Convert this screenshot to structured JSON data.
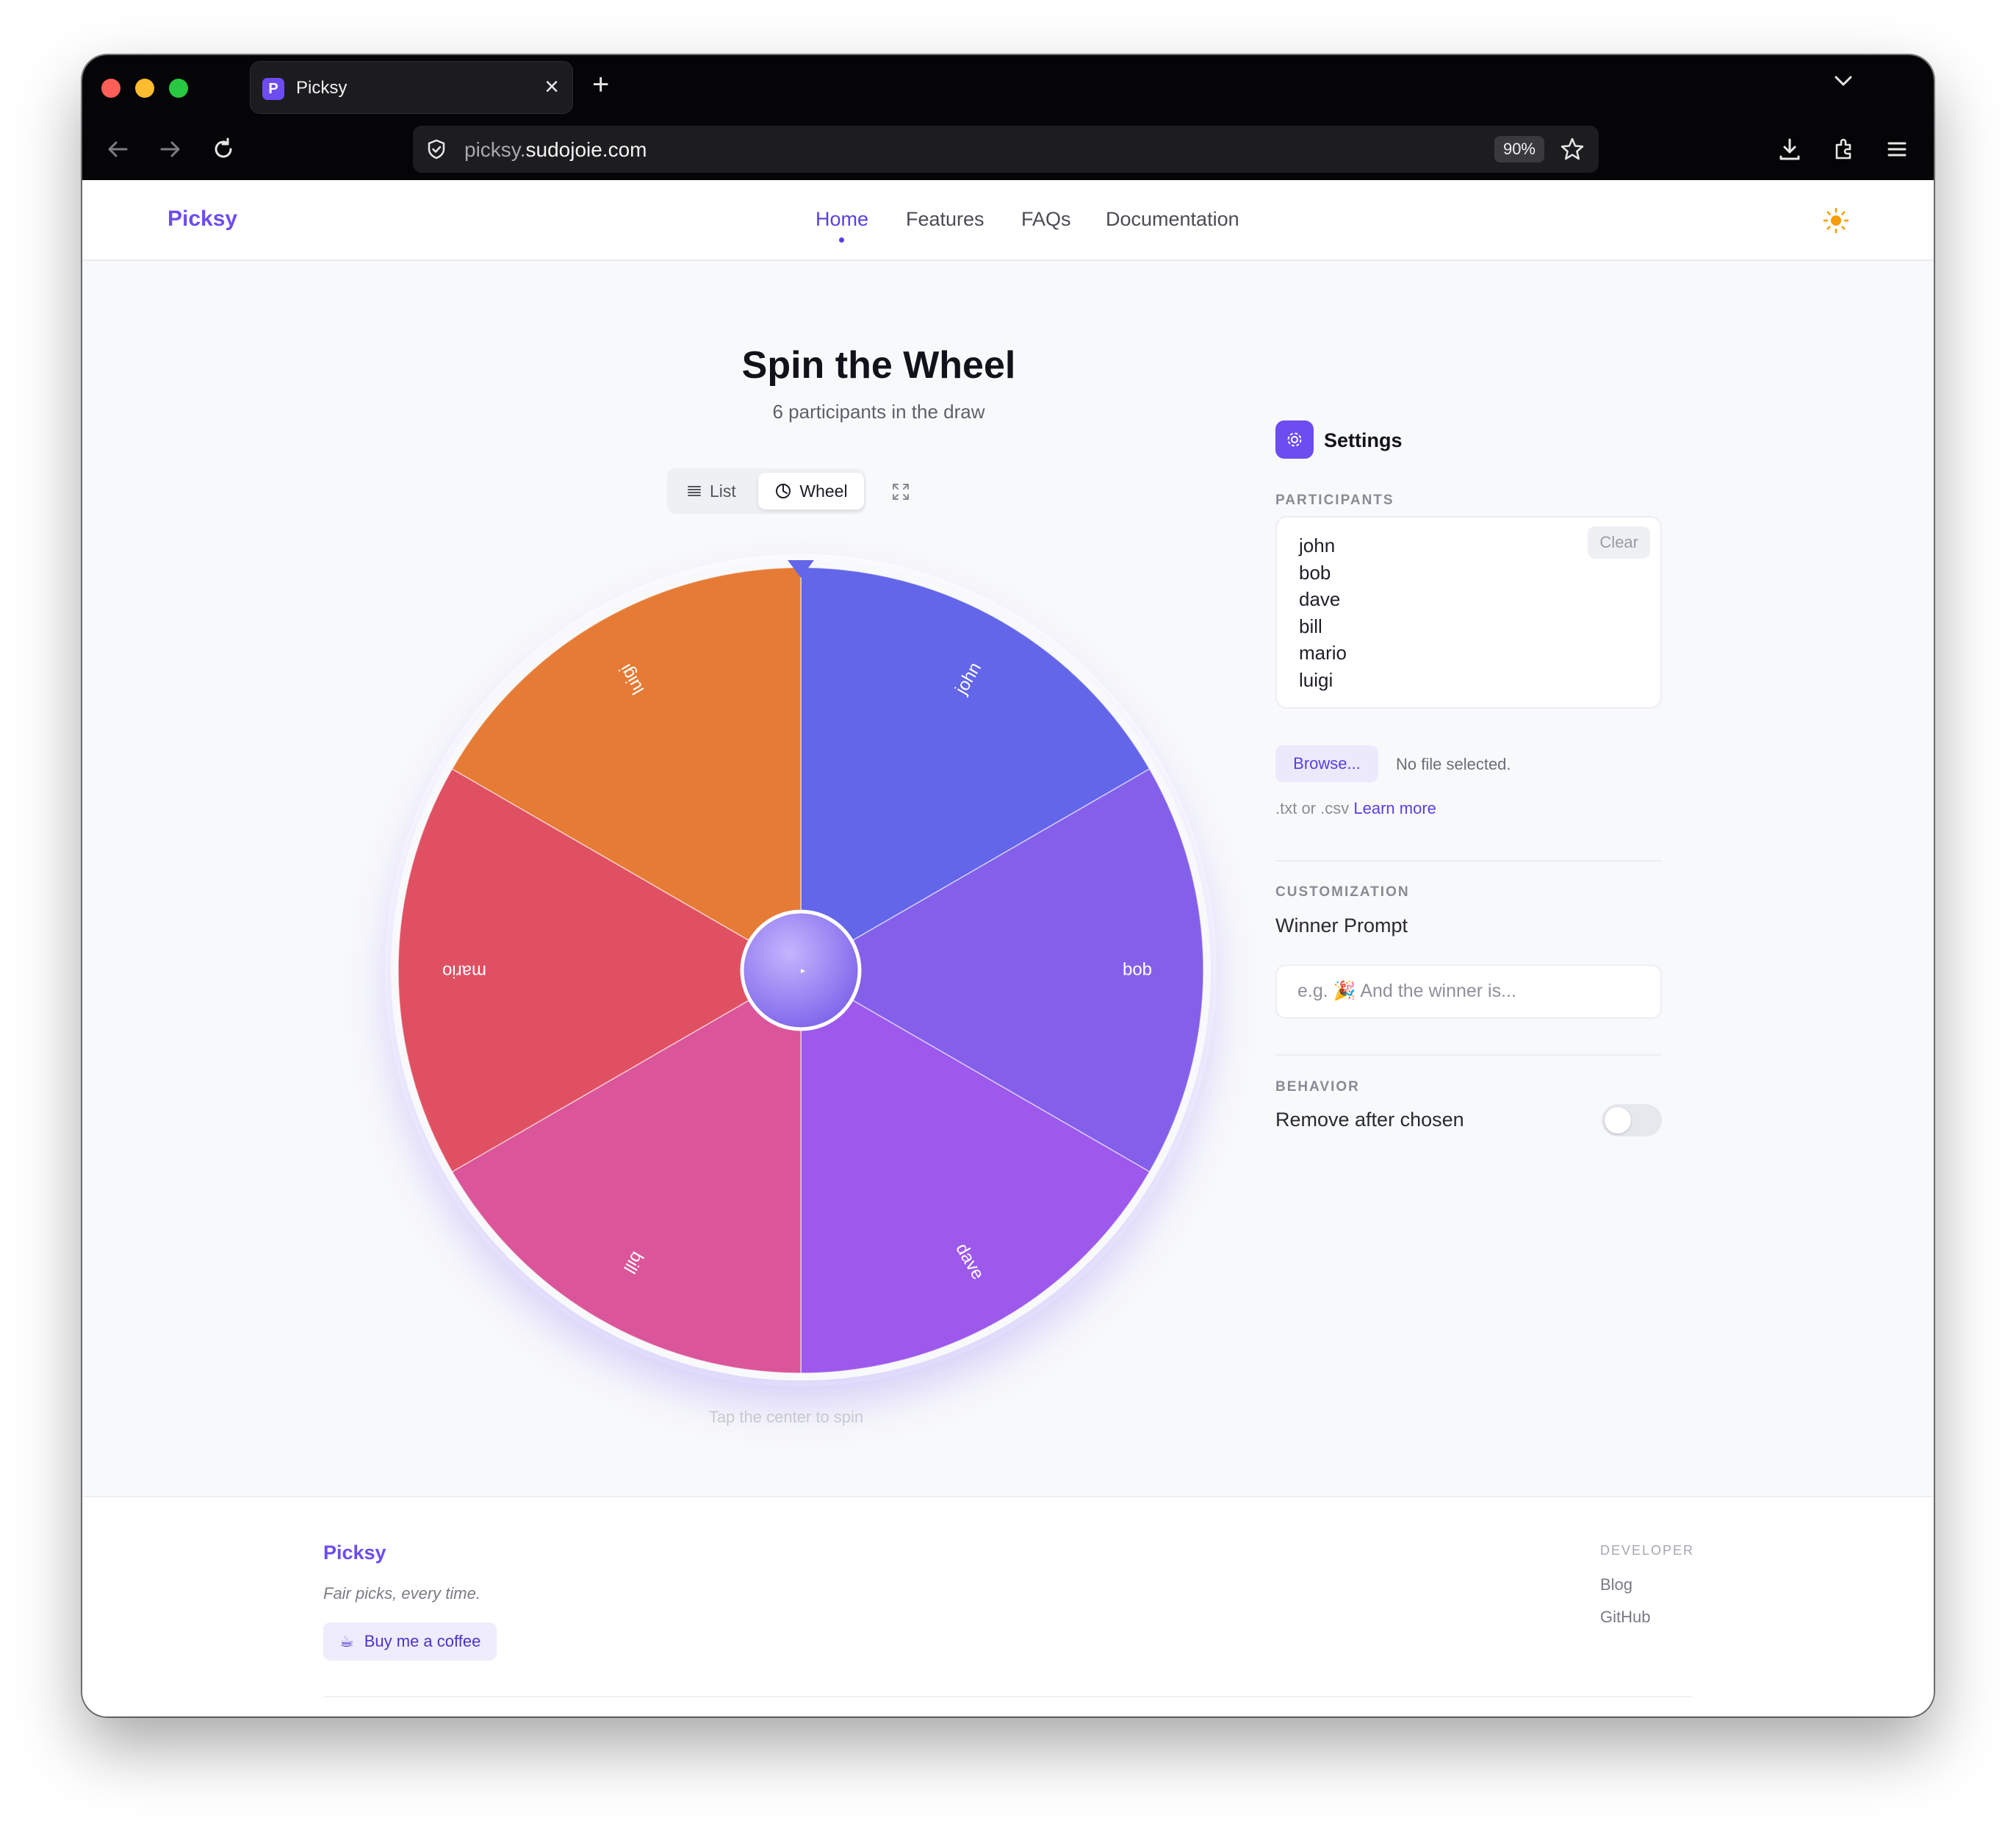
{
  "browser": {
    "tab_title": "Picksy",
    "tab_favicon_letter": "P",
    "url_subdomain": "picksy.",
    "url_domain": "sudojoie.com",
    "zoom": "90%"
  },
  "header": {
    "brand": "Picksy",
    "nav": [
      {
        "label": "Home",
        "active": true
      },
      {
        "label": "Features",
        "active": false
      },
      {
        "label": "FAQs",
        "active": false
      },
      {
        "label": "Documentation",
        "active": false
      }
    ]
  },
  "main": {
    "title": "Spin the Wheel",
    "subtitle": "6 participants in the draw",
    "view_toggle": {
      "list_label": "List",
      "wheel_label": "Wheel",
      "selected": "Wheel"
    },
    "wheel": {
      "segments": [
        {
          "label": "john",
          "color": "#6366e8"
        },
        {
          "label": "bob",
          "color": "#8460ea"
        },
        {
          "label": "dave",
          "color": "#9d58ec"
        },
        {
          "label": "bill",
          "color": "#da5599"
        },
        {
          "label": "mario",
          "color": "#e05063"
        },
        {
          "label": "luigi",
          "color": "#e67b36"
        }
      ],
      "hint": "Tap the center to spin"
    }
  },
  "settings": {
    "title": "Settings",
    "participants_label": "PARTICIPANTS",
    "participants": [
      "john",
      "bob",
      "dave",
      "bill",
      "mario",
      "luigi"
    ],
    "clear_label": "Clear",
    "browse_label": "Browse...",
    "no_file_label": "No file selected.",
    "file_hint": ".txt or .csv",
    "learn_more": "Learn more",
    "customization_label": "CUSTOMIZATION",
    "winner_prompt_label": "Winner Prompt",
    "winner_prompt_placeholder": "e.g. 🎉 And the winner is...",
    "behavior_label": "BEHAVIOR",
    "remove_after_chosen_label": "Remove after chosen",
    "remove_after_chosen": false
  },
  "footer": {
    "brand": "Picksy",
    "tagline": "Fair picks, every time.",
    "coffee_icon": "☕",
    "coffee_label": "Buy me a coffee",
    "developer_label": "DEVELOPER",
    "links": [
      "Blog",
      "GitHub"
    ]
  }
}
